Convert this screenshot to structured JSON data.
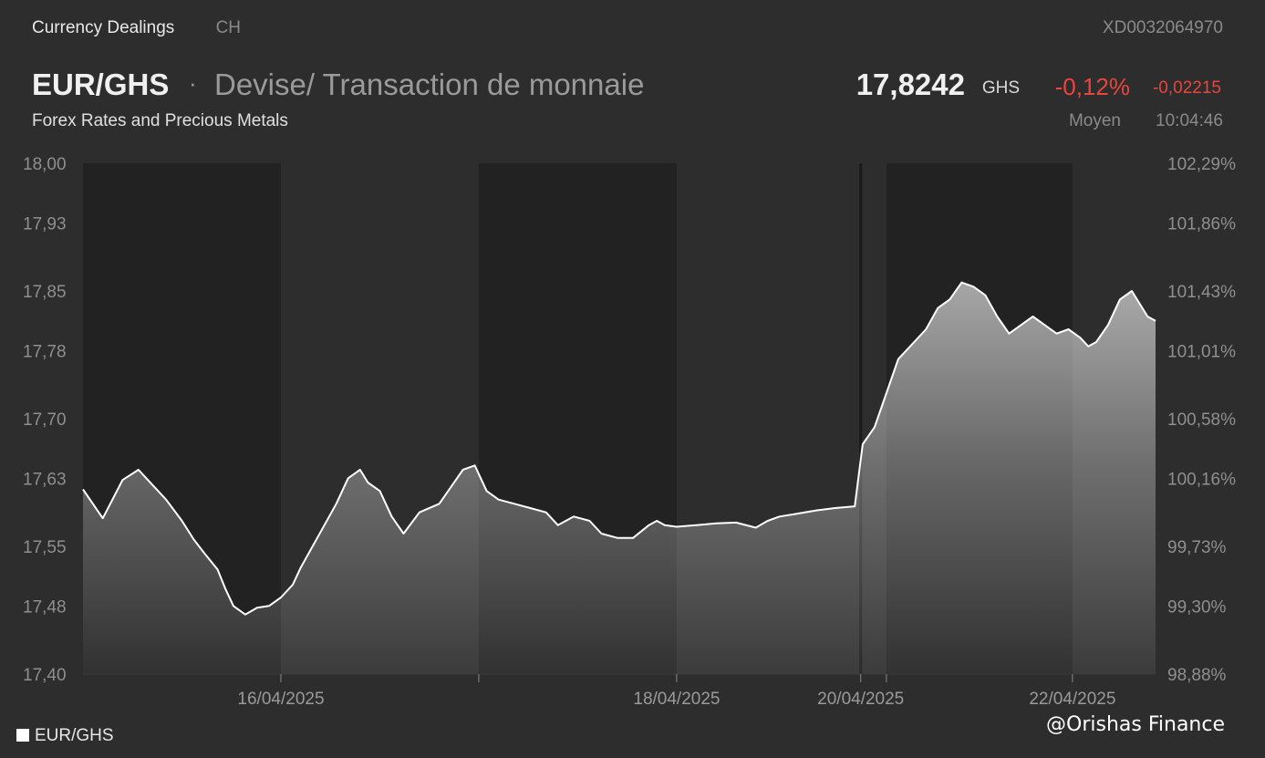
{
  "topbar": {
    "title": "Currency Dealings",
    "sub": "CH",
    "id": "XD0032064970"
  },
  "header": {
    "pair": "EUR/GHS",
    "separator": "·",
    "description": "Devise/ Transaction de monnaie",
    "subtitle": "Forex Rates and Precious Metals"
  },
  "quote": {
    "price": "17,8242",
    "currency": "GHS",
    "change_pct": "-0,12%",
    "change_abs": "-0,02215",
    "mode": "Moyen",
    "time": "10:04:46"
  },
  "legend": {
    "label": "EUR/GHS"
  },
  "watermark": "@Orishas Finance",
  "colors": {
    "background": "#2d2d2d",
    "dark_band": "#222222",
    "line": "#ffffff",
    "negative": "#e8453c"
  },
  "chart_data": {
    "type": "area",
    "title": "",
    "xlabel": "",
    "ylabel": "",
    "ylim": [
      17.4,
      18.0
    ],
    "y_ticks": [
      "18,00",
      "17,93",
      "17,85",
      "17,78",
      "17,70",
      "17,63",
      "17,55",
      "17,48",
      "17,40"
    ],
    "y_tick_values": [
      18.0,
      17.93,
      17.85,
      17.78,
      17.7,
      17.63,
      17.55,
      17.48,
      17.4
    ],
    "y2_ticks": [
      "102,29%",
      "101,86%",
      "101,43%",
      "101,01%",
      "100,58%",
      "100,16%",
      "99,73%",
      "99,30%",
      "98,88%"
    ],
    "x_ticks": [
      {
        "label": "16/04/2025",
        "x": 1.0
      },
      {
        "label": "",
        "x": 2.0
      },
      {
        "label": "18/04/2025",
        "x": 3.0
      },
      {
        "label": "20/04/2025",
        "x": 3.93
      },
      {
        "label": "",
        "x": 4.06
      },
      {
        "label": "22/04/2025",
        "x": 5.0
      }
    ],
    "bands": [
      [
        0,
        1
      ],
      [
        2,
        3
      ],
      [
        4.06,
        5
      ]
    ],
    "separator_x": 3.93,
    "xlim": [
      0,
      5.42
    ],
    "grid": false,
    "legend_position": "bottom-left",
    "series": [
      {
        "name": "EUR/GHS",
        "points": [
          [
            0.0,
            17.617
          ],
          [
            0.1,
            17.583
          ],
          [
            0.2,
            17.628
          ],
          [
            0.28,
            17.64
          ],
          [
            0.36,
            17.62
          ],
          [
            0.42,
            17.605
          ],
          [
            0.5,
            17.58
          ],
          [
            0.56,
            17.558
          ],
          [
            0.62,
            17.54
          ],
          [
            0.68,
            17.523
          ],
          [
            0.72,
            17.5
          ],
          [
            0.76,
            17.48
          ],
          [
            0.82,
            17.47
          ],
          [
            0.88,
            17.478
          ],
          [
            0.94,
            17.48
          ],
          [
            1.0,
            17.49
          ],
          [
            1.06,
            17.505
          ],
          [
            1.1,
            17.525
          ],
          [
            1.16,
            17.55
          ],
          [
            1.22,
            17.575
          ],
          [
            1.28,
            17.6
          ],
          [
            1.34,
            17.63
          ],
          [
            1.4,
            17.64
          ],
          [
            1.44,
            17.625
          ],
          [
            1.5,
            17.615
          ],
          [
            1.56,
            17.585
          ],
          [
            1.62,
            17.565
          ],
          [
            1.7,
            17.59
          ],
          [
            1.8,
            17.6
          ],
          [
            1.86,
            17.62
          ],
          [
            1.92,
            17.64
          ],
          [
            1.98,
            17.645
          ],
          [
            2.04,
            17.615
          ],
          [
            2.1,
            17.605
          ],
          [
            2.18,
            17.6
          ],
          [
            2.26,
            17.595
          ],
          [
            2.34,
            17.59
          ],
          [
            2.4,
            17.575
          ],
          [
            2.48,
            17.585
          ],
          [
            2.56,
            17.58
          ],
          [
            2.62,
            17.565
          ],
          [
            2.7,
            17.56
          ],
          [
            2.78,
            17.56
          ],
          [
            2.86,
            17.575
          ],
          [
            2.9,
            17.58
          ],
          [
            2.94,
            17.575
          ],
          [
            3.0,
            17.573
          ],
          [
            3.1,
            17.575
          ],
          [
            3.2,
            17.577
          ],
          [
            3.3,
            17.578
          ],
          [
            3.4,
            17.572
          ],
          [
            3.46,
            17.58
          ],
          [
            3.52,
            17.585
          ],
          [
            3.6,
            17.588
          ],
          [
            3.7,
            17.592
          ],
          [
            3.8,
            17.595
          ],
          [
            3.9,
            17.597
          ],
          [
            3.94,
            17.67
          ],
          [
            4.0,
            17.69
          ],
          [
            4.06,
            17.73
          ],
          [
            4.12,
            17.77
          ],
          [
            4.2,
            17.79
          ],
          [
            4.26,
            17.805
          ],
          [
            4.32,
            17.83
          ],
          [
            4.38,
            17.84
          ],
          [
            4.44,
            17.86
          ],
          [
            4.5,
            17.855
          ],
          [
            4.56,
            17.845
          ],
          [
            4.62,
            17.82
          ],
          [
            4.68,
            17.8
          ],
          [
            4.74,
            17.81
          ],
          [
            4.8,
            17.82
          ],
          [
            4.86,
            17.81
          ],
          [
            4.92,
            17.8
          ],
          [
            4.98,
            17.805
          ],
          [
            5.04,
            17.795
          ],
          [
            5.08,
            17.785
          ],
          [
            5.12,
            17.79
          ],
          [
            5.18,
            17.81
          ],
          [
            5.24,
            17.84
          ],
          [
            5.3,
            17.85
          ],
          [
            5.34,
            17.835
          ],
          [
            5.38,
            17.82
          ],
          [
            5.42,
            17.815
          ]
        ]
      }
    ]
  }
}
